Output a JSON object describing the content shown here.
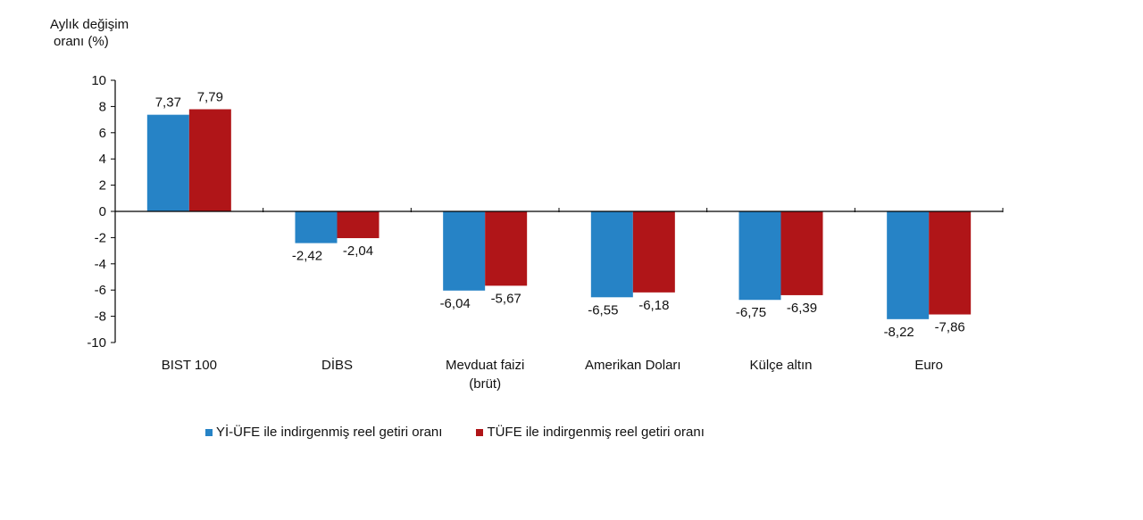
{
  "chart_data": {
    "type": "bar",
    "title": "",
    "ylabel": "Aylık değişim oranı (%)",
    "ylabel_lines": [
      "Aylık değişim",
      "oranı (%)"
    ],
    "xlabel": "",
    "ylim": [
      -10,
      10
    ],
    "yticks": [
      10,
      8,
      6,
      4,
      2,
      0,
      -2,
      -4,
      -6,
      -8,
      -10
    ],
    "grid": false,
    "legend_position": "bottom",
    "categories": [
      "BIST 100",
      "DİBS",
      "Mevduat faizi (brüt)",
      "Amerikan Doları",
      "Külçe altın",
      "Euro"
    ],
    "category_lines": [
      [
        "BIST 100"
      ],
      [
        "DİBS"
      ],
      [
        "Mevduat faizi",
        "(brüt)"
      ],
      [
        "Amerikan Doları"
      ],
      [
        "Külçe altın"
      ],
      [
        "Euro"
      ]
    ],
    "series": [
      {
        "name": "Yİ-ÜFE ile indirgenmiş reel getiri oranı",
        "color": "#2683C6",
        "values": [
          7.37,
          -2.42,
          -6.04,
          -6.55,
          -6.75,
          -8.22
        ],
        "labels": [
          "7,37",
          "-2,42",
          "-6,04",
          "-6,55",
          "-6,75",
          "-8,22"
        ]
      },
      {
        "name": "TÜFE ile indirgenmiş reel getiri oranı",
        "color": "#B01518",
        "values": [
          7.79,
          -2.04,
          -5.67,
          -6.18,
          -6.39,
          -7.86
        ],
        "labels": [
          "7,79",
          "-2,04",
          "-5,67",
          "-6,18",
          "-6,39",
          "-7,86"
        ]
      }
    ]
  }
}
